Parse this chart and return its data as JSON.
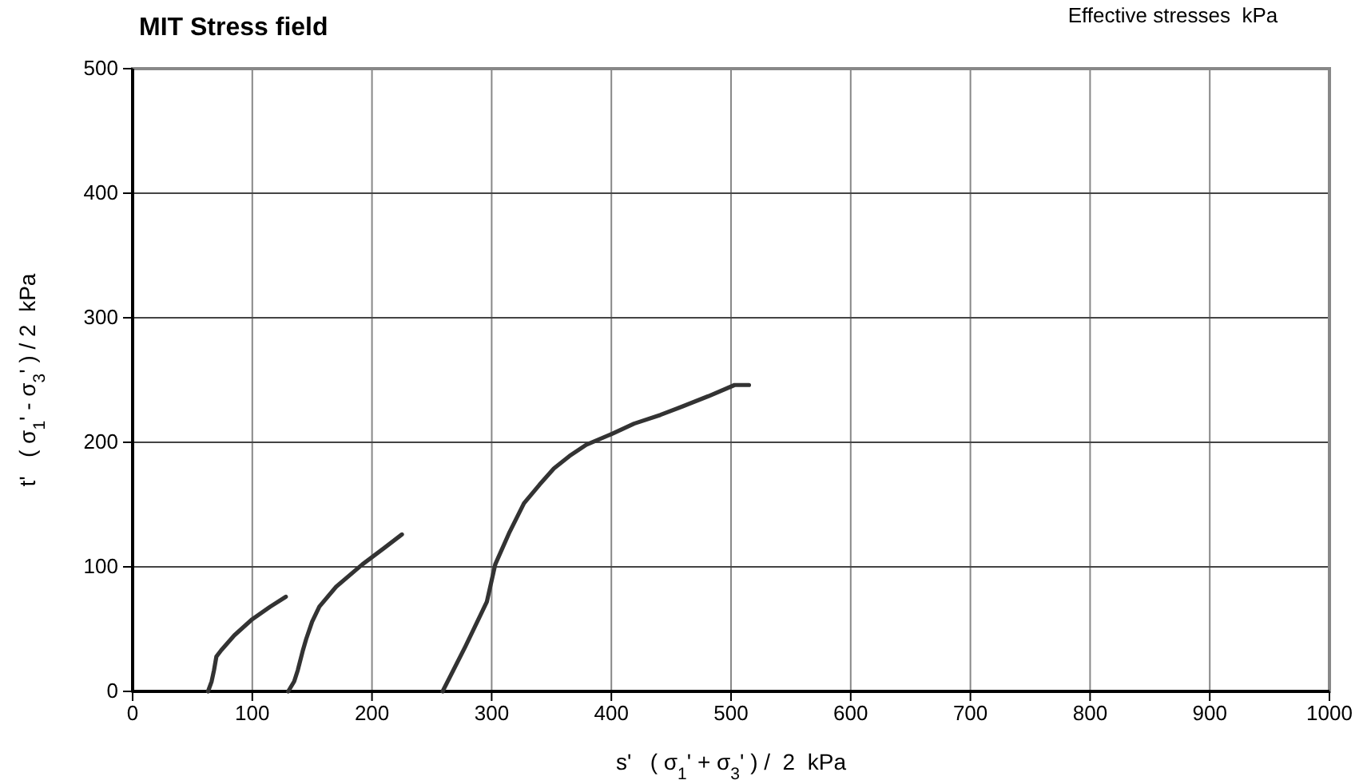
{
  "chart_data": {
    "type": "line",
    "title": "MIT Stress field",
    "annotations": [
      "Effective stresses  kPa"
    ],
    "xlabel": "s'   ( σ$_{1}$' + σ$_{3}$' ) /  2  kPa",
    "ylabel": "t'   ( σ$_{1}$' - σ$_{3}$' ) / 2  kPa",
    "xlim": [
      0,
      1000
    ],
    "xticks": [
      0,
      100,
      200,
      300,
      400,
      500,
      600,
      700,
      800,
      900,
      1000
    ],
    "ylim": [
      0,
      500
    ],
    "yticks": [
      0,
      100,
      200,
      300,
      400,
      500
    ],
    "grid": true,
    "marker": "none",
    "line_style": "solid",
    "series": [
      {
        "color": "#333333",
        "x": [
          63,
          66,
          68,
          70,
          74,
          85,
          100,
          115,
          128
        ],
        "values": [
          0,
          8,
          17,
          28,
          33,
          45,
          58,
          68,
          76
        ]
      },
      {
        "color": "#333333",
        "x": [
          130,
          135,
          138,
          142,
          145,
          150,
          156,
          170,
          192,
          210,
          225
        ],
        "values": [
          0,
          8,
          17,
          32,
          42,
          56,
          68,
          84,
          102,
          115,
          126
        ]
      },
      {
        "color": "#333333",
        "x": [
          259,
          278,
          296,
          303,
          315,
          327,
          340,
          352,
          365,
          379,
          401,
          419,
          441,
          460,
          481,
          503,
          515
        ],
        "values": [
          0,
          36,
          72,
          102,
          128,
          151,
          166,
          179,
          189,
          198,
          207,
          215,
          222,
          229,
          237,
          246,
          246
        ]
      }
    ]
  }
}
